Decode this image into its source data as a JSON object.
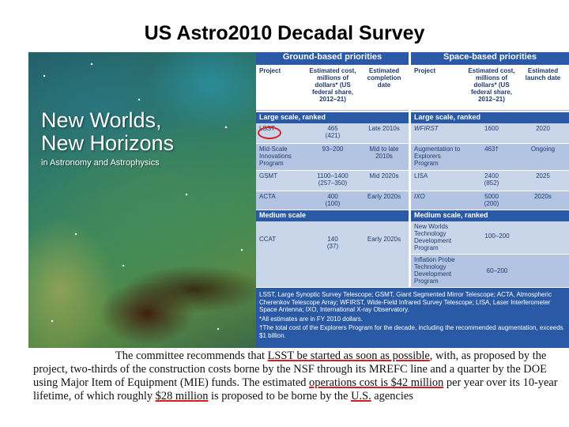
{
  "slide": {
    "title": "US Astro2010 Decadal Survey"
  },
  "cover": {
    "title_line1": "New Worlds,",
    "title_line2": "New Horizons",
    "subtitle": "in Astronomy and Astrophysics"
  },
  "table": {
    "ground_header": "Ground-based priorities",
    "space_header": "Space-based priorities",
    "ground_columns": [
      "Project",
      "Estimated cost, millions of dollars* (US federal share, 2012–21)",
      "Estimated completion date"
    ],
    "space_columns": [
      "Project",
      "Estimated cost, millions of dollars* (US federal share, 2012–21)",
      "Estimated launch date"
    ],
    "ground_large_label": "Large scale, ranked",
    "space_large_label": "Large scale, ranked",
    "ground_large_rows": [
      {
        "project": "LSST",
        "cost": "465",
        "cost_sub": "(421)",
        "date": "Late 2010s"
      },
      {
        "project": "Mid-Scale Innovations Program",
        "cost": "93–200",
        "cost_sub": "",
        "date": "Mid to late 2010s"
      },
      {
        "project": "GSMT",
        "cost": "1100–1400",
        "cost_sub": "(257–350)",
        "date": "Mid 2020s"
      },
      {
        "project": "ACTA",
        "cost": "400",
        "cost_sub": "(100)",
        "date": "Early 2020s"
      }
    ],
    "space_large_rows": [
      {
        "project": "WFIRST",
        "cost": "1600",
        "cost_sub": "",
        "date": "2020"
      },
      {
        "project": "Augmentation to Explorers Program",
        "cost": "463†",
        "cost_sub": "",
        "date": "Ongoing"
      },
      {
        "project": "LISA",
        "cost": "2400",
        "cost_sub": "(852)",
        "date": "2025"
      },
      {
        "project": "IXO",
        "cost": "5000",
        "cost_sub": "(200)",
        "date": "2020s"
      }
    ],
    "ground_medium_label": "Medium scale",
    "space_medium_label": "Medium scale, ranked",
    "ground_medium_rows": [
      {
        "project": "CCAT",
        "cost": "140",
        "cost_sub": "(37)",
        "date": "Early 2020s"
      }
    ],
    "space_medium_rows": [
      {
        "project": "New Worlds Technology Development Program",
        "cost": "100–200"
      },
      {
        "project": "Inflation Probe Technology Development Program",
        "cost": "60–200"
      }
    ],
    "notes": {
      "abbrev": "LSST, Large Synoptic Survey Telescope; GSMT, Giant Segmented Mirror Telescope; ACTA, Atmospheric Cherenkov Telescope Array; WFIRST, Wide-Field Infrared Survey Telescope; LISA, Laser Interferometer Space Antenna; IXO, International X-ray Observatory.",
      "star": "*All estimates are in FY 2010 dollars.",
      "dagger": "†The total cost of the Explorers Program for the decade, including the recommended augmentation, exceeds $1 billion."
    }
  },
  "quote": {
    "p1": "The committee recommends that ",
    "u1": "LSST be started as soon as possible",
    "p2": ", with, as proposed by the project, two-thirds of the construction costs borne by the NSF through its MREFC line and a quarter by the DOE using Major Item of Equipment (MIE) funds. The estimated ",
    "u2": "operations cost is $42 million",
    "p3": " per year over its 10-year lifetime, of which roughly ",
    "u3": "$28 million",
    "p4": " is proposed to be borne by the ",
    "u4": "U.S.",
    "p5": " agencies"
  },
  "colors": {
    "table_blue": "#2a5aa6",
    "table_light": "#c9d6ea",
    "table_mid": "#b2c4e2",
    "highlight_red": "#d42020"
  }
}
